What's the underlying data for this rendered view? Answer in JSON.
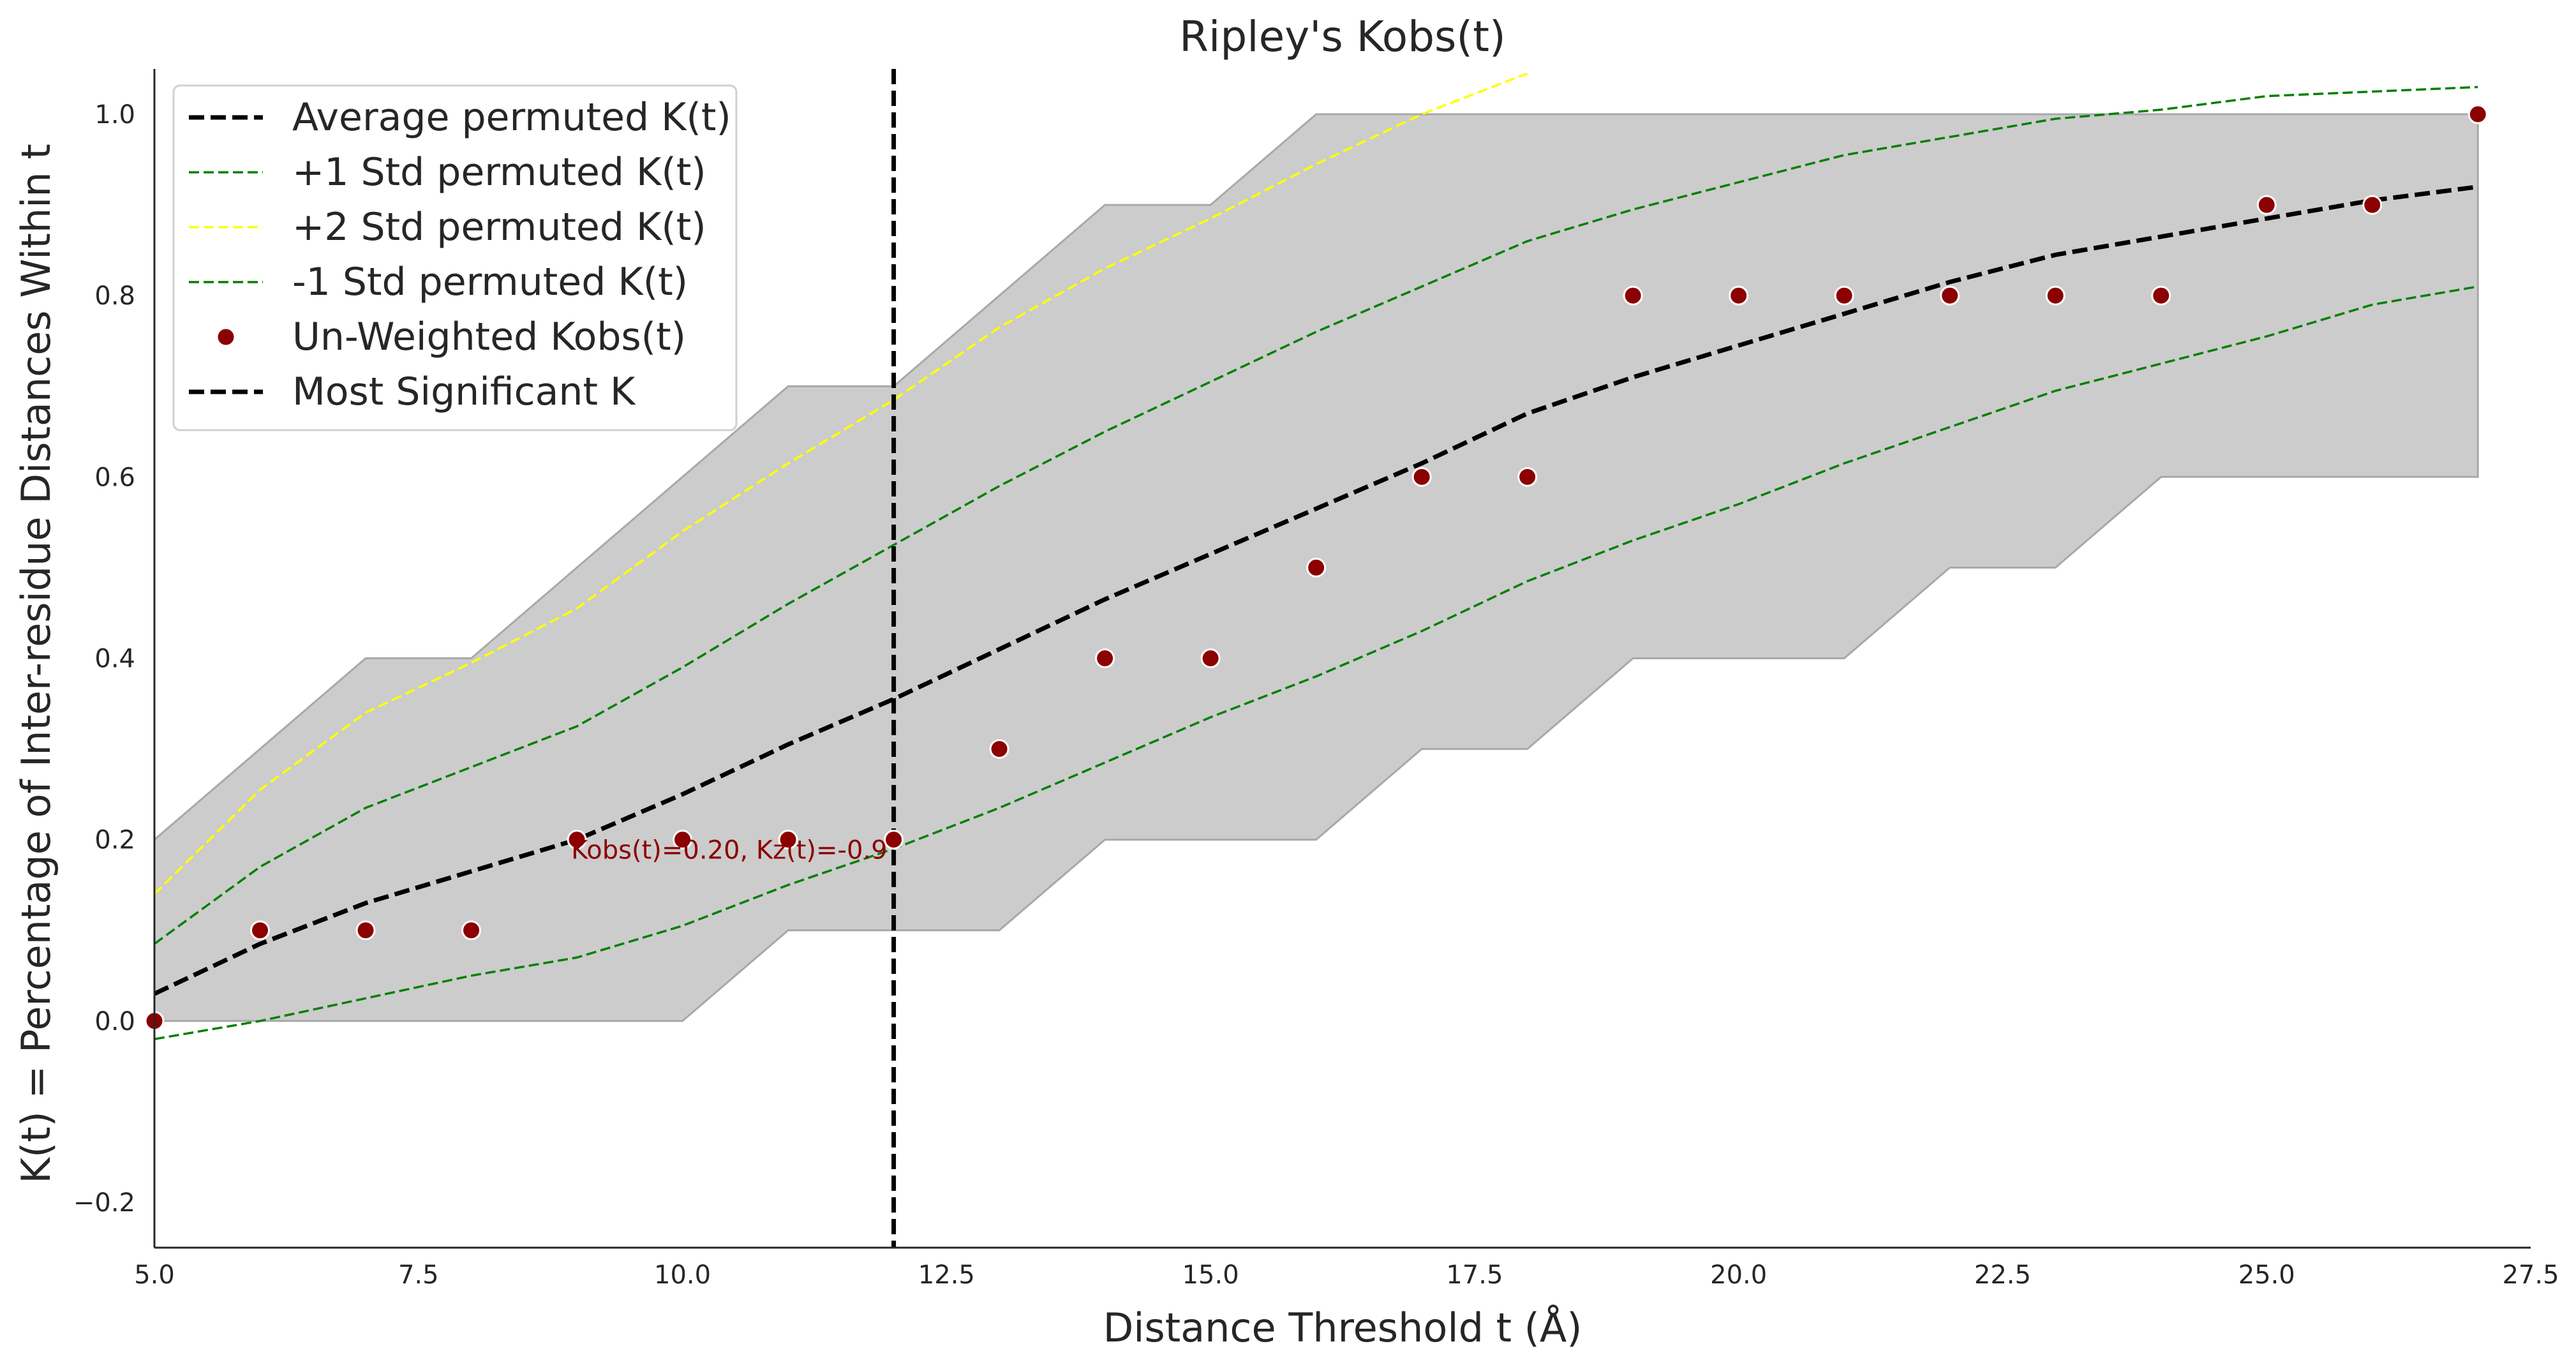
{
  "chart_data": {
    "type": "line",
    "title": "Ripley's Kobs(t)",
    "xlabel": "Distance Threshold t (Å)",
    "ylabel": "K(t) = Percentage of Inter-residue Distances Within t",
    "xlim": [
      5.0,
      27.5
    ],
    "ylim": [
      -0.25,
      1.05
    ],
    "x_ticks": [
      5.0,
      7.5,
      10.0,
      12.5,
      15.0,
      17.5,
      20.0,
      22.5,
      25.0,
      27.5
    ],
    "x_tick_labels": [
      "5.0",
      "7.5",
      "10.0",
      "12.5",
      "15.0",
      "17.5",
      "20.0",
      "22.5",
      "25.0",
      "27.5"
    ],
    "y_ticks": [
      -0.2,
      0.0,
      0.2,
      0.4,
      0.6,
      0.8,
      1.0
    ],
    "y_tick_labels": [
      "−0.2",
      "0.0",
      "0.2",
      "0.4",
      "0.6",
      "0.8",
      "1.0"
    ],
    "grid": false,
    "legend_position": "top-left",
    "x": [
      5,
      6,
      7,
      8,
      9,
      10,
      11,
      12,
      13,
      14,
      15,
      16,
      17,
      18,
      19,
      20,
      21,
      22,
      23,
      24,
      25,
      26,
      27
    ],
    "envelope": {
      "color": "#cccccc",
      "upper": [
        0.2,
        0.3,
        0.4,
        0.4,
        0.5,
        0.6,
        0.7,
        0.7,
        0.8,
        0.9,
        0.9,
        1.0,
        1.0,
        1.0,
        1.0,
        1.0,
        1.0,
        1.0,
        1.0,
        1.0,
        1.0,
        1.0,
        1.0
      ],
      "lower": [
        0.0,
        0.0,
        0.0,
        0.0,
        0.0,
        0.0,
        0.1,
        0.1,
        0.1,
        0.2,
        0.2,
        0.2,
        0.3,
        0.3,
        0.4,
        0.4,
        0.4,
        0.5,
        0.5,
        0.6,
        0.6,
        0.6,
        0.6
      ]
    },
    "series": [
      {
        "name": "Average permuted K(t)",
        "kind": "line",
        "color": "#000000",
        "dash": "dashed",
        "values": [
          0.03,
          0.085,
          0.13,
          0.165,
          0.2,
          0.25,
          0.305,
          0.355,
          0.41,
          0.465,
          0.515,
          0.565,
          0.615,
          0.67,
          0.71,
          0.745,
          0.78,
          0.815,
          0.845,
          0.865,
          0.885,
          0.905,
          0.92
        ]
      },
      {
        "name": "+1 Std permuted K(t)",
        "kind": "line",
        "color": "#008000",
        "dash": "dashed-thin",
        "values": [
          0.085,
          0.17,
          0.235,
          0.28,
          0.325,
          0.39,
          0.46,
          0.525,
          0.59,
          0.65,
          0.705,
          0.76,
          0.81,
          0.86,
          0.895,
          0.925,
          0.955,
          0.975,
          0.995,
          1.005,
          1.02,
          1.025,
          1.03
        ]
      },
      {
        "name": "+2 Std permuted K(t)",
        "kind": "line",
        "color": "#ffff00",
        "dash": "dashed-thin",
        "values": [
          0.14,
          0.255,
          0.34,
          0.395,
          0.455,
          0.54,
          0.615,
          0.685,
          0.765,
          0.83,
          0.885,
          0.945,
          1.0,
          1.045,
          null,
          null,
          null,
          null,
          null,
          null,
          null,
          null,
          null
        ]
      },
      {
        "name": "-1 Std permuted K(t)",
        "kind": "line",
        "color": "#008000",
        "dash": "dashed-thin",
        "values": [
          -0.02,
          0.0,
          0.025,
          0.05,
          0.07,
          0.105,
          0.15,
          0.19,
          0.235,
          0.285,
          0.335,
          0.38,
          0.43,
          0.485,
          0.53,
          0.57,
          0.615,
          0.655,
          0.695,
          0.725,
          0.755,
          0.79,
          0.81
        ]
      },
      {
        "name": "Un-Weighted Kobs(t)",
        "kind": "scatter",
        "color": "#8b0000",
        "values": [
          0.0,
          0.1,
          0.1,
          0.1,
          0.2,
          0.2,
          0.2,
          0.2,
          0.3,
          0.4,
          0.4,
          0.5,
          0.6,
          0.6,
          0.8,
          0.8,
          0.8,
          0.8,
          0.8,
          0.8,
          0.9,
          0.9,
          1.0
        ]
      },
      {
        "name": "Most Significant K",
        "kind": "vline",
        "color": "#000000",
        "dash": "dashed",
        "x_value": 12
      }
    ],
    "annotations": [
      {
        "text": "Kobs(t)=0.20, Kz(t)=-0.9",
        "x": 12,
        "y": 0.2,
        "color": "#8b0000"
      }
    ]
  }
}
